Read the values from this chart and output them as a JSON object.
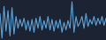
{
  "values": [
    60,
    18,
    72,
    30,
    65,
    22,
    70,
    25,
    55,
    35,
    50,
    38,
    52,
    32,
    48,
    30,
    50,
    28,
    52,
    35,
    55,
    32,
    48,
    35,
    55,
    32,
    50,
    30,
    48,
    35,
    50,
    28,
    45,
    32,
    48,
    35,
    80,
    28,
    55,
    38,
    45,
    55,
    35,
    60,
    38,
    50,
    42,
    55,
    40,
    52,
    42,
    55,
    40,
    52
  ],
  "line_color": "#5ba3d9",
  "bg_color": "#1c2333",
  "linewidth": 0.8
}
